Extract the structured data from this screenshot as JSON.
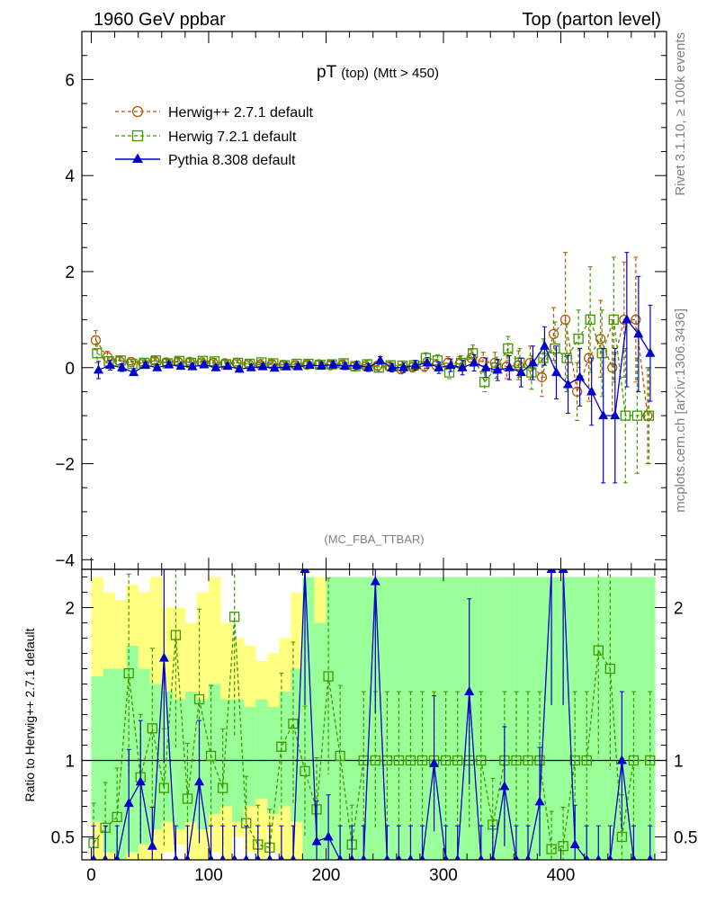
{
  "header": {
    "left_label": "1960 GeV ppbar",
    "right_label": "Top (parton level)"
  },
  "side_labels": {
    "rivet": "Rivet 3.1.10, ≥ 100k events",
    "mcplots": "mcplots.cern.ch [arXiv:1306.3436]"
  },
  "watermark": "(MC_FBA_TTBAR)",
  "chart_data": [
    {
      "type": "line",
      "title_main": "pT",
      "title_sub1": "(top)",
      "title_sub2": "(Mtt > 450)",
      "xlim": [
        -8,
        490
      ],
      "ylim": [
        -4.2,
        7.0
      ],
      "yticks": [
        -4,
        -2,
        0,
        2,
        4,
        6
      ],
      "ytick_labels": [
        "−4",
        "−2",
        "0",
        "2",
        "4",
        "6"
      ],
      "grid": false,
      "legend_position": "top-left",
      "colors": {
        "herwig_pp": "#b35900",
        "herwig7": "#3d9900",
        "pythia": "#0000cc"
      },
      "series": [
        {
          "name": "Herwig++ 2.7.1 default",
          "marker": "open-circle",
          "color": "#b35900",
          "x": [
            5,
            15,
            25,
            35,
            45,
            55,
            65,
            75,
            85,
            95,
            105,
            115,
            125,
            135,
            145,
            155,
            165,
            175,
            185,
            195,
            205,
            215,
            225,
            235,
            245,
            255,
            265,
            275,
            285,
            295,
            305,
            315,
            325,
            335,
            345,
            355,
            365,
            375,
            385,
            395,
            405,
            415,
            425,
            435,
            445,
            455,
            465,
            475
          ],
          "y": [
            0.57,
            0.22,
            0.14,
            0.12,
            0.1,
            0.14,
            0.11,
            0.12,
            0.12,
            0.11,
            0.1,
            0.09,
            0.1,
            0.08,
            0.06,
            0.07,
            0.06,
            0.05,
            0.06,
            0.07,
            0.05,
            0.06,
            0.02,
            0.03,
            0.04,
            0.02,
            -0.03,
            0.01,
            0.03,
            0.05,
            0.1,
            0.08,
            0.2,
            0.12,
            0.1,
            0.02,
            0.05,
            0.1,
            -0.2,
            0.7,
            1.0,
            -0.5,
            0.2,
            0.6,
            0.0,
            1.0,
            1.0,
            -1.0
          ],
          "err": [
            0.2,
            0.12,
            0.08,
            0.06,
            0.06,
            0.06,
            0.06,
            0.06,
            0.06,
            0.06,
            0.06,
            0.06,
            0.06,
            0.06,
            0.06,
            0.06,
            0.06,
            0.06,
            0.06,
            0.07,
            0.07,
            0.07,
            0.08,
            0.08,
            0.08,
            0.09,
            0.1,
            0.1,
            0.11,
            0.12,
            0.13,
            0.15,
            0.17,
            0.2,
            0.22,
            0.25,
            0.3,
            0.35,
            0.4,
            0.55,
            1.4,
            0.6,
            0.9,
            0.8,
            1.0,
            1.2,
            1.3,
            1.0
          ]
        },
        {
          "name": "Herwig 7.2.1 default",
          "marker": "open-square",
          "color": "#3d9900",
          "x": [
            5,
            15,
            25,
            35,
            45,
            55,
            65,
            75,
            85,
            95,
            105,
            115,
            125,
            135,
            145,
            155,
            165,
            175,
            185,
            195,
            205,
            215,
            225,
            235,
            245,
            255,
            265,
            275,
            285,
            295,
            305,
            315,
            325,
            335,
            345,
            355,
            365,
            375,
            385,
            395,
            405,
            415,
            425,
            435,
            445,
            455,
            465,
            475
          ],
          "y": [
            0.3,
            0.13,
            0.15,
            0.08,
            0.1,
            0.15,
            0.09,
            0.14,
            0.1,
            0.14,
            0.13,
            0.07,
            0.1,
            0.08,
            0.11,
            0.09,
            0.05,
            0.08,
            0.08,
            0.06,
            0.07,
            0.09,
            0.03,
            0.07,
            0.0,
            0.05,
            0.04,
            0.05,
            0.2,
            0.15,
            -0.1,
            0.1,
            0.3,
            -0.3,
            0.0,
            0.4,
            0.1,
            -0.1,
            0.2,
            0.4,
            0.2,
            0.6,
            1.0,
            0.3,
            1.0,
            -1.0,
            -1.0,
            -1.0
          ],
          "err": [
            0.2,
            0.1,
            0.08,
            0.06,
            0.06,
            0.06,
            0.06,
            0.06,
            0.06,
            0.06,
            0.06,
            0.06,
            0.06,
            0.06,
            0.06,
            0.06,
            0.06,
            0.06,
            0.06,
            0.07,
            0.07,
            0.07,
            0.08,
            0.08,
            0.08,
            0.09,
            0.1,
            0.1,
            0.11,
            0.12,
            0.13,
            0.15,
            0.17,
            0.2,
            0.22,
            0.25,
            0.3,
            0.35,
            0.4,
            0.55,
            0.7,
            0.6,
            1.1,
            0.9,
            1.3,
            1.4,
            1.2,
            1.0
          ]
        },
        {
          "name": "Pythia 8.308 default",
          "marker": "filled-triangle",
          "color": "#0000cc",
          "x": [
            5,
            15,
            25,
            35,
            45,
            55,
            65,
            75,
            85,
            95,
            105,
            115,
            125,
            135,
            145,
            155,
            165,
            175,
            185,
            195,
            205,
            215,
            225,
            235,
            245,
            255,
            265,
            275,
            285,
            295,
            305,
            315,
            325,
            335,
            345,
            355,
            365,
            375,
            385,
            395,
            405,
            415,
            425,
            435,
            445,
            455,
            465,
            475
          ],
          "y": [
            -0.05,
            0.05,
            0.0,
            -0.1,
            0.05,
            0.0,
            0.06,
            0.03,
            0.02,
            0.06,
            0.0,
            0.03,
            -0.03,
            0.0,
            0.02,
            -0.01,
            0.02,
            0.02,
            0.05,
            0.04,
            0.06,
            0.03,
            0.05,
            0.0,
            0.15,
            0.0,
            0.0,
            0.05,
            0.1,
            0.0,
            0.05,
            0.0,
            0.1,
            0.0,
            -0.05,
            0.0,
            -0.1,
            0.1,
            0.45,
            -0.1,
            -0.35,
            -0.2,
            -0.5,
            -1.0,
            -1.0,
            1.0,
            0.7,
            0.3
          ],
          "err": [
            0.18,
            0.1,
            0.08,
            0.06,
            0.06,
            0.06,
            0.06,
            0.06,
            0.06,
            0.06,
            0.06,
            0.06,
            0.06,
            0.06,
            0.06,
            0.06,
            0.06,
            0.06,
            0.06,
            0.07,
            0.07,
            0.07,
            0.08,
            0.08,
            0.08,
            0.09,
            0.1,
            0.1,
            0.11,
            0.12,
            0.13,
            0.15,
            0.17,
            0.2,
            0.22,
            0.25,
            0.3,
            0.35,
            0.4,
            0.55,
            0.6,
            0.6,
            0.7,
            1.4,
            1.4,
            1.4,
            1.2,
            1.0
          ]
        }
      ]
    },
    {
      "type": "line",
      "ylabel": "Ratio to Herwig++ 2.7.1 default",
      "xlim": [
        -8,
        490
      ],
      "ylim": [
        0.35,
        2.25
      ],
      "yticks": [
        0.5,
        1,
        2
      ],
      "ytick_labels": [
        "0.5",
        "1",
        "2"
      ],
      "xticks": [
        0,
        100,
        200,
        300,
        400
      ],
      "xtick_labels": [
        "0",
        "100",
        "200",
        "300",
        "400"
      ],
      "reference_line": 1,
      "band_colors": {
        "outer": "#ffff80",
        "inner": "#99ff99"
      },
      "band_bins": [
        0,
        10,
        20,
        30,
        40,
        50,
        60,
        70,
        80,
        90,
        100,
        110,
        120,
        130,
        140,
        150,
        160,
        170,
        180,
        190,
        200,
        210,
        220,
        230,
        240,
        250,
        260,
        270,
        280,
        290,
        300,
        310,
        320,
        330,
        340,
        350,
        360,
        370,
        380,
        390,
        400,
        410,
        420,
        430,
        440,
        450,
        460,
        470,
        480
      ],
      "band_outer": [
        [
          0.35,
          2.2
        ],
        [
          0.35,
          2.1
        ],
        [
          0.35,
          2.05
        ],
        [
          0.35,
          2.15
        ],
        [
          0.35,
          2.1
        ],
        [
          0.35,
          2.2
        ],
        [
          0.4,
          2.0
        ],
        [
          0.45,
          2.0
        ],
        [
          0.35,
          1.9
        ],
        [
          0.35,
          2.1
        ],
        [
          0.4,
          2.2
        ],
        [
          0.35,
          1.9
        ],
        [
          0.5,
          1.8
        ],
        [
          0.4,
          1.75
        ],
        [
          0.35,
          1.65
        ],
        [
          0.4,
          1.7
        ],
        [
          0.35,
          1.8
        ],
        [
          0.35,
          2.1
        ],
        [
          0.35,
          2.2
        ],
        [
          0.35,
          2.2
        ],
        [
          0.35,
          2.2
        ],
        [
          0.35,
          2.2
        ],
        [
          0.35,
          2.2
        ],
        [
          0.35,
          2.2
        ],
        [
          0.35,
          2.2
        ],
        [
          0.35,
          2.2
        ],
        [
          0.35,
          2.2
        ],
        [
          0.35,
          2.2
        ],
        [
          0.35,
          2.2
        ],
        [
          0.35,
          2.2
        ],
        [
          0.35,
          2.2
        ],
        [
          0.35,
          2.2
        ],
        [
          0.35,
          2.2
        ],
        [
          0.35,
          2.2
        ],
        [
          0.35,
          2.2
        ],
        [
          0.35,
          2.2
        ],
        [
          0.35,
          2.2
        ],
        [
          0.35,
          2.2
        ],
        [
          0.35,
          2.2
        ],
        [
          0.35,
          2.2
        ],
        [
          0.35,
          2.2
        ],
        [
          0.35,
          2.2
        ],
        [
          0.35,
          2.2
        ],
        [
          0.35,
          2.2
        ],
        [
          0.35,
          2.2
        ],
        [
          0.35,
          2.2
        ],
        [
          0.35,
          2.2
        ],
        [
          0.35,
          2.2
        ]
      ],
      "band_inner": [
        [
          0.6,
          1.55
        ],
        [
          0.4,
          1.6
        ],
        [
          0.35,
          1.6
        ],
        [
          0.4,
          1.75
        ],
        [
          0.45,
          1.6
        ],
        [
          0.55,
          1.5
        ],
        [
          0.6,
          1.45
        ],
        [
          0.55,
          1.4
        ],
        [
          0.6,
          1.45
        ],
        [
          0.55,
          1.4
        ],
        [
          0.65,
          1.5
        ],
        [
          0.7,
          1.4
        ],
        [
          0.6,
          1.4
        ],
        [
          0.7,
          1.35
        ],
        [
          0.75,
          1.4
        ],
        [
          0.65,
          1.35
        ],
        [
          0.7,
          1.45
        ],
        [
          0.6,
          1.6
        ],
        [
          0.35,
          2.2
        ],
        [
          0.35,
          1.9
        ],
        [
          0.35,
          2.2
        ],
        [
          0.35,
          2.2
        ],
        [
          0.35,
          2.2
        ],
        [
          0.35,
          2.2
        ],
        [
          0.35,
          2.2
        ],
        [
          0.35,
          2.2
        ],
        [
          0.35,
          2.2
        ],
        [
          0.35,
          2.2
        ],
        [
          0.35,
          2.2
        ],
        [
          0.35,
          2.2
        ],
        [
          0.35,
          2.2
        ],
        [
          0.35,
          2.2
        ],
        [
          0.35,
          2.2
        ],
        [
          0.35,
          2.2
        ],
        [
          0.35,
          2.2
        ],
        [
          0.35,
          2.2
        ],
        [
          0.35,
          2.2
        ],
        [
          0.35,
          2.2
        ],
        [
          0.35,
          2.2
        ],
        [
          0.35,
          2.2
        ],
        [
          0.35,
          2.2
        ],
        [
          0.35,
          2.2
        ],
        [
          0.35,
          2.2
        ],
        [
          0.35,
          2.2
        ],
        [
          0.35,
          2.2
        ],
        [
          0.35,
          2.2
        ],
        [
          0.35,
          2.2
        ],
        [
          0.35,
          2.2
        ]
      ],
      "series": [
        {
          "name": "Herwig 7.2.1 default",
          "marker": "open-square",
          "color": "#3d9900",
          "x": [
            2,
            12,
            22,
            32,
            42,
            52,
            62,
            72,
            82,
            92,
            102,
            112,
            122,
            132,
            142,
            152,
            162,
            172,
            182,
            192,
            202,
            212,
            222,
            232,
            242,
            252,
            262,
            272,
            282,
            292,
            302,
            312,
            322,
            332,
            342,
            352,
            362,
            372,
            382,
            392,
            402,
            412,
            422,
            432,
            442,
            452,
            462,
            476
          ],
          "y": [
            0.46,
            0.56,
            0.63,
            1.57,
            0.89,
            1.21,
            0.82,
            1.82,
            0.75,
            1.4,
            1.03,
            0.82,
            1.94,
            0.59,
            0.45,
            0.43,
            1.09,
            1.24,
            0.93,
            0.68,
            1.55,
            1.03,
            0.45,
            1.0,
            1.0,
            1.0,
            1.0,
            1.0,
            1.0,
            1.0,
            1.0,
            1.0,
            1.0,
            1.0,
            0.58,
            1.0,
            1.0,
            1.0,
            1.0,
            0.42,
            0.44,
            1.0,
            1.0,
            1.72,
            1.6,
            0.5,
            1.0,
            1.0
          ]
        },
        {
          "name": "Pythia 8.308 default",
          "marker": "filled-triangle",
          "color": "#0000cc",
          "x": [
            2,
            12,
            22,
            32,
            42,
            52,
            62,
            72,
            82,
            92,
            102,
            112,
            122,
            132,
            142,
            152,
            162,
            172,
            182,
            192,
            202,
            212,
            222,
            232,
            242,
            252,
            262,
            272,
            282,
            292,
            302,
            312,
            322,
            332,
            342,
            352,
            362,
            372,
            382,
            392,
            402,
            412,
            422,
            432,
            442,
            452,
            462,
            476
          ],
          "y": [
            0.35,
            0.35,
            0.35,
            0.72,
            0.86,
            0.44,
            1.67,
            0.35,
            0.35,
            0.86,
            0.35,
            0.35,
            0.35,
            0.35,
            0.35,
            0.35,
            0.35,
            0.35,
            2.25,
            0.47,
            0.5,
            0.35,
            0.35,
            0.35,
            2.17,
            0.35,
            0.35,
            0.35,
            0.35,
            0.98,
            0.35,
            0.35,
            1.45,
            0.35,
            0.35,
            0.83,
            0.35,
            0.35,
            0.73,
            2.25,
            2.25,
            0.45,
            0.35,
            0.35,
            0.35,
            1.0,
            0.35,
            0.35
          ]
        }
      ]
    }
  ]
}
